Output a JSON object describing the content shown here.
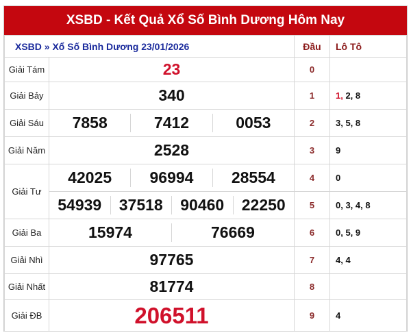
{
  "title": "XSBD - Kết Quả Xổ Số Bình Dương Hôm Nay",
  "breadcrumb": "XSBD » Xổ Số Bình Dương 23/01/2026",
  "col_dau": "Đầu",
  "col_loto": "Lô Tô",
  "prizes": {
    "g8": {
      "label": "Giải Tám",
      "numbers": [
        "23"
      ]
    },
    "g7": {
      "label": "Giải Bảy",
      "numbers": [
        "340"
      ]
    },
    "g6": {
      "label": "Giải Sáu",
      "numbers": [
        "7858",
        "7412",
        "0053"
      ]
    },
    "g5": {
      "label": "Giải Năm",
      "numbers": [
        "2528"
      ]
    },
    "g4": {
      "label": "Giải Tư",
      "numbers": [
        "42025",
        "96994",
        "28554",
        "54939",
        "37518",
        "90460",
        "22250"
      ]
    },
    "g3": {
      "label": "Giải Ba",
      "numbers": [
        "15974",
        "76669"
      ]
    },
    "g2": {
      "label": "Giải Nhì",
      "numbers": [
        "97765"
      ]
    },
    "g1": {
      "label": "Giải Nhất",
      "numbers": [
        "81774"
      ]
    },
    "db": {
      "label": "Giải ĐB",
      "numbers": [
        "206511"
      ]
    }
  },
  "loto": [
    {
      "dau": "0",
      "first": "",
      "rest": ""
    },
    {
      "dau": "1",
      "first": "1,",
      "rest": " 2, 8"
    },
    {
      "dau": "2",
      "first": "",
      "rest": "3, 5, 8"
    },
    {
      "dau": "3",
      "first": "",
      "rest": "9"
    },
    {
      "dau": "4",
      "first": "",
      "rest": "0"
    },
    {
      "dau": "5",
      "first": "",
      "rest": "0, 3, 4, 8"
    },
    {
      "dau": "6",
      "first": "",
      "rest": "0, 5, 9"
    },
    {
      "dau": "7",
      "first": "",
      "rest": "4, 4"
    },
    {
      "dau": "8",
      "first": "",
      "rest": ""
    },
    {
      "dau": "9",
      "first": "",
      "rest": "4"
    }
  ],
  "colors": {
    "header": "#c4070f",
    "accent_red": "#d0112b",
    "breadcrumb": "#1a2a9c"
  }
}
